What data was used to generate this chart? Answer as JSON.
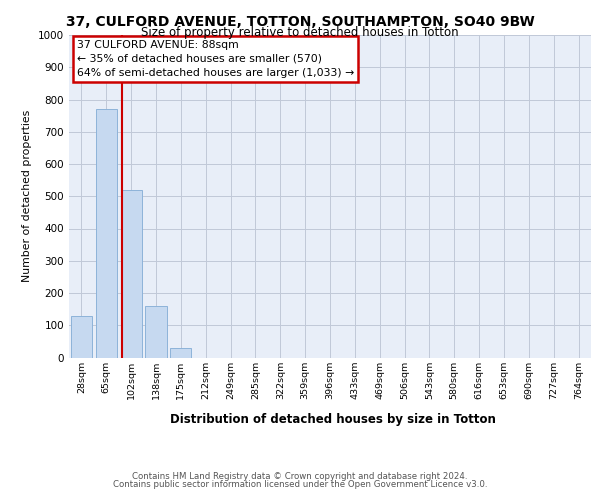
{
  "title1": "37, CULFORD AVENUE, TOTTON, SOUTHAMPTON, SO40 9BW",
  "title2": "Size of property relative to detached houses in Totton",
  "xlabel": "Distribution of detached houses by size in Totton",
  "ylabel": "Number of detached properties",
  "footer1": "Contains HM Land Registry data © Crown copyright and database right 2024.",
  "footer2": "Contains public sector information licensed under the Open Government Licence v3.0.",
  "bin_labels": [
    "28sqm",
    "65sqm",
    "102sqm",
    "138sqm",
    "175sqm",
    "212sqm",
    "249sqm",
    "285sqm",
    "322sqm",
    "359sqm",
    "396sqm",
    "433sqm",
    "469sqm",
    "506sqm",
    "543sqm",
    "580sqm",
    "616sqm",
    "653sqm",
    "690sqm",
    "727sqm",
    "764sqm"
  ],
  "bar_values": [
    130,
    770,
    520,
    160,
    30,
    0,
    0,
    0,
    0,
    0,
    0,
    0,
    0,
    0,
    0,
    0,
    0,
    0,
    0,
    0,
    0
  ],
  "bar_color": "#c6d9f0",
  "bar_edge_color": "#8db3d9",
  "annotation_title": "37 CULFORD AVENUE: 88sqm",
  "annotation_line1": "← 35% of detached houses are smaller (570)",
  "annotation_line2": "64% of semi-detached houses are larger (1,033) →",
  "annotation_box_color": "#ffffff",
  "annotation_box_edge": "#cc0000",
  "red_line_color": "#cc0000",
  "grid_color": "#c0c8d8",
  "background_color": "#e8eef8",
  "ylim": [
    0,
    1000
  ],
  "yticks": [
    0,
    100,
    200,
    300,
    400,
    500,
    600,
    700,
    800,
    900,
    1000
  ]
}
